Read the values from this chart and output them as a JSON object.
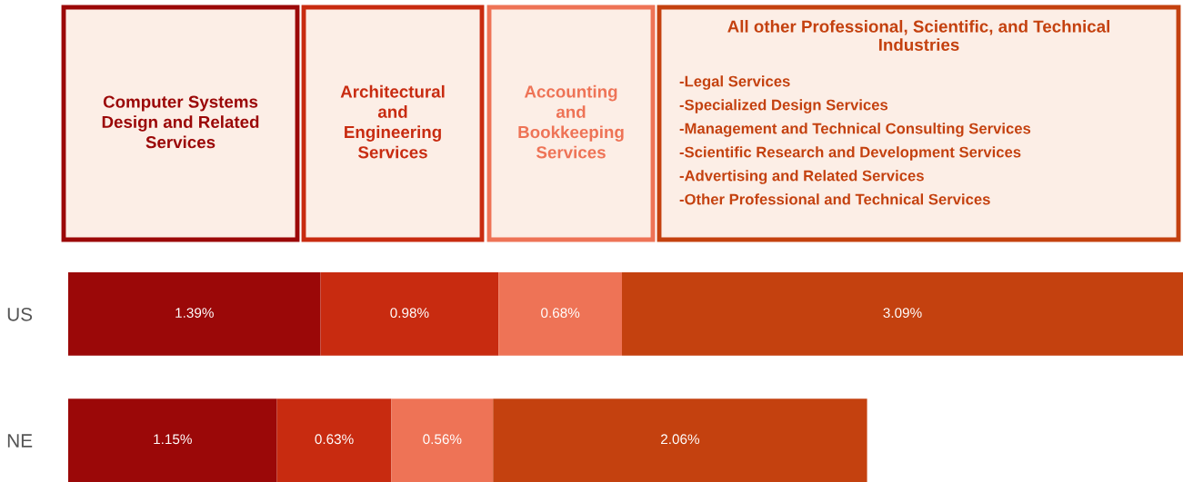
{
  "chart_data": {
    "type": "bar",
    "orientation": "horizontal",
    "stacked": true,
    "legend": "top",
    "tick_labels": "y",
    "grid": false,
    "categories": [
      "US",
      "NE"
    ],
    "series": [
      {
        "name": "Computer Systems\nDesign and Related\nServices",
        "color": "#9b0808",
        "values": [
          1.39,
          1.15
        ],
        "value_labels": [
          "1.39%",
          "1.15%"
        ]
      },
      {
        "name": "Architectural\nand\nEngineering\nServices",
        "color": "#c82b10",
        "values": [
          0.98,
          0.63
        ],
        "value_labels": [
          "0.98%",
          "0.63%"
        ]
      },
      {
        "name": "Accounting\nand\nBookkeeping\nServices",
        "color": "#ee7356",
        "values": [
          0.68,
          0.56
        ],
        "value_labels": [
          "0.68%",
          "0.56%"
        ]
      },
      {
        "name": "All other Professional, Scientific, and Technical\nIndustries",
        "color": "#c4410f",
        "values": [
          3.09,
          2.06
        ],
        "value_labels": [
          "3.09%",
          "2.06%"
        ]
      }
    ],
    "annotations": [
      "-Legal Services",
      "-Specialized Design Services",
      "-Management and Technical Consulting Services",
      "-Scientific Research and Development Services",
      "-Advertising and Related Services",
      "-Other Professional and Technical Services"
    ]
  }
}
